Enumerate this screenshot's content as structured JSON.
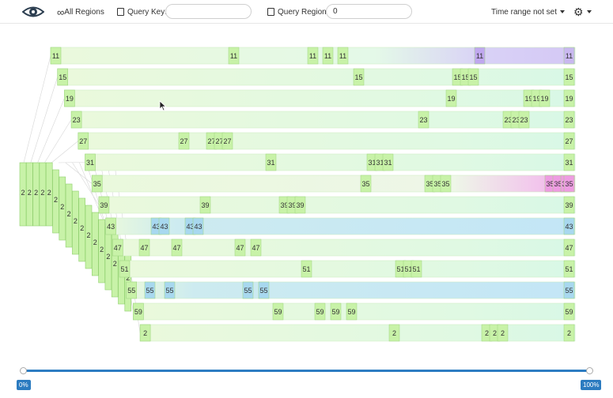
{
  "toolbar": {
    "all_regions_label": "All Regions",
    "query_key_label": "Query Key:",
    "query_key_value": "",
    "query_region_label": "Query Region:",
    "query_region_value": "0",
    "time_range_label": "Time range not set"
  },
  "slider": {
    "min_label": "0%",
    "max_label": "100%",
    "min_value": 0,
    "max_value": 100
  },
  "colors": {
    "green_cell": "#c8f2a8",
    "green_light": "#eaf9dc",
    "mint": "#d6f8e4",
    "blue": "#bfe5f6",
    "purple": "#c9b8f0",
    "pink": "#ee9ce2"
  },
  "rows": [
    {
      "label": "11",
      "tone": "purple",
      "ticks": [
        "11",
        "11",
        "11",
        "11",
        "11",
        "11",
        "11"
      ]
    },
    {
      "label": "15",
      "tone": "mint",
      "ticks": [
        "15",
        "15",
        "15",
        "15",
        "15",
        "15"
      ]
    },
    {
      "label": "19",
      "tone": "mint",
      "ticks": [
        "19",
        "19",
        "19",
        "19",
        "19",
        "19"
      ]
    },
    {
      "label": "23",
      "tone": "mint",
      "ticks": [
        "23",
        "23",
        "23",
        "23",
        "23",
        "23"
      ]
    },
    {
      "label": "27",
      "tone": "mint",
      "ticks": [
        "27",
        "27",
        "27",
        "27",
        "27",
        "27",
        "27"
      ]
    },
    {
      "label": "31",
      "tone": "mint",
      "ticks": [
        "31",
        "31",
        "31",
        "31",
        "31",
        "31"
      ]
    },
    {
      "label": "35",
      "tone": "pink",
      "ticks": [
        "35",
        "35",
        "35",
        "35",
        "35",
        "35",
        "35",
        "35",
        "35"
      ]
    },
    {
      "label": "39",
      "tone": "mint",
      "ticks": [
        "39",
        "39",
        "39",
        "39",
        "39",
        "39"
      ]
    },
    {
      "label": "43",
      "tone": "blue",
      "ticks": [
        "43",
        "43",
        "43",
        "43",
        "43",
        "43"
      ]
    },
    {
      "label": "47",
      "tone": "mint",
      "ticks": [
        "47",
        "47",
        "47",
        "47",
        "47",
        "47"
      ]
    },
    {
      "label": "51",
      "tone": "mint",
      "ticks": [
        "51",
        "51",
        "51",
        "51",
        "51",
        "51"
      ]
    },
    {
      "label": "55",
      "tone": "blue",
      "ticks": [
        "55",
        "55",
        "55",
        "55",
        "55"
      ]
    },
    {
      "label": "59",
      "tone": "mint",
      "ticks": [
        "59",
        "59",
        "59",
        "59",
        "59",
        "59"
      ]
    },
    {
      "label": "2",
      "tone": "mint",
      "ticks": [
        "2",
        "2",
        "2",
        "2",
        "2"
      ]
    }
  ],
  "stack_labels": [
    "2",
    "2",
    "2",
    "2",
    "2",
    "2",
    "2",
    "2",
    "2",
    "2",
    "2",
    "2",
    "2",
    "2",
    "2",
    "2",
    "2"
  ]
}
